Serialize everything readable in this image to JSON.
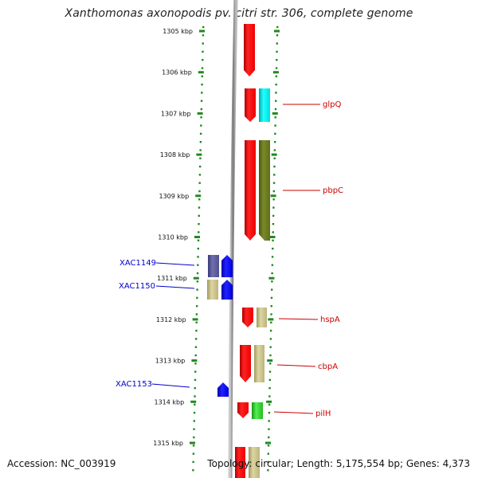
{
  "title": "Xanthomonas axonopodis pv. citri str. 306, complete genome",
  "footer": {
    "accession": "Accession: NC_003919",
    "topology": "Topology: circular; Length: 5,175,554 bp; Genes: 4,373"
  },
  "scale_labels": [
    "1305 kbp",
    "1306 kbp",
    "1307 kbp",
    "1308 kbp",
    "1309 kbp",
    "1310 kbp",
    "1311 kbp",
    "1312 kbp",
    "1313 kbp",
    "1314 kbp",
    "1315 kbp"
  ],
  "gene_labels_right": [
    "glpQ",
    "pbpC",
    "hspA",
    "cbpA",
    "pilH"
  ],
  "gene_labels_left": [
    "XAC1149",
    "XAC1150",
    "XAC1153"
  ],
  "colors": {
    "red": "#ff0000",
    "cyan": "#00ffff",
    "olive": "#6b7b20",
    "khaki": "#c8c08a",
    "blue": "#0000ff",
    "slate": "#5a5a9a",
    "green": "#33cc33",
    "scale_green": "#228822",
    "label_red": "#cc0000",
    "label_blue": "#0000cc"
  }
}
